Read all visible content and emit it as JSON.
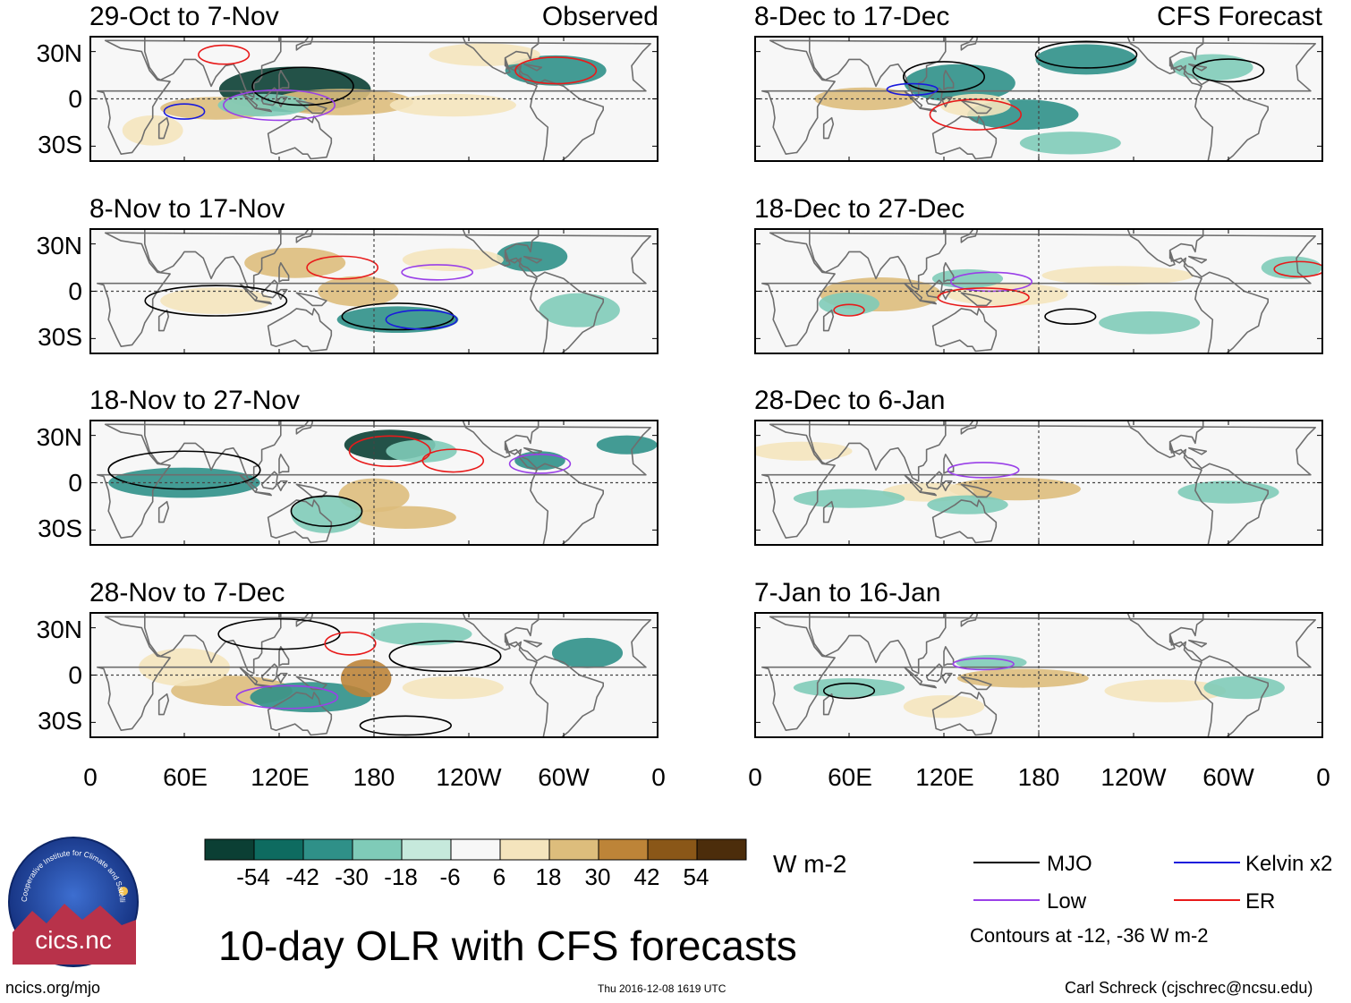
{
  "chart_data": {
    "type": "heatmap",
    "title": "10-day OLR with CFS forecasts",
    "units": "W m-2",
    "left_header": "Observed",
    "right_header": "CFS Forecast",
    "y_ticks": [
      "30N",
      "0",
      "30S"
    ],
    "x_ticks": [
      "0",
      "60E",
      "120E",
      "180",
      "120W",
      "60W",
      "0"
    ],
    "panels": [
      {
        "column": "left",
        "period": "29-Oct to 7-Nov"
      },
      {
        "column": "left",
        "period": "8-Nov to 17-Nov"
      },
      {
        "column": "left",
        "period": "18-Nov to 27-Nov"
      },
      {
        "column": "left",
        "period": "28-Nov to 7-Dec"
      },
      {
        "column": "right",
        "period": "8-Dec to 17-Dec"
      },
      {
        "column": "right",
        "period": "18-Dec to 27-Dec"
      },
      {
        "column": "right",
        "period": "28-Dec to 6-Jan"
      },
      {
        "column": "right",
        "period": "7-Jan to 16-Jan"
      }
    ],
    "colorbar": {
      "boundaries": [
        "-54",
        "-42",
        "-30",
        "-18",
        "-6",
        "6",
        "18",
        "30",
        "42",
        "54"
      ],
      "colors": [
        "#0b3f34",
        "#0e6b60",
        "#2f9088",
        "#7fcbb8",
        "#c6e9dc",
        "#f7f7f7",
        "#f4e4bd",
        "#ddbd7c",
        "#bd8438",
        "#8a5718",
        "#4c2d0b"
      ]
    },
    "legend": {
      "items": [
        {
          "label": "MJO",
          "color": "#000000"
        },
        {
          "label": "Kelvin x2",
          "color": "#1a1adc"
        },
        {
          "label": "Low",
          "color": "#9a40e8"
        },
        {
          "label": "ER",
          "color": "#e81a1a"
        }
      ],
      "note": "Contours at -12, -36 W m-2"
    }
  },
  "footer": {
    "website": "ncics.org/mjo",
    "timestamp": "Thu 2016-12-08 1619 UTC",
    "author": "Carl Schreck (cjschrec@ncsu.edu)"
  },
  "logo": {
    "text": "cics.nc",
    "ring_text": "Cooperative Institute for Climate and Satellites"
  }
}
